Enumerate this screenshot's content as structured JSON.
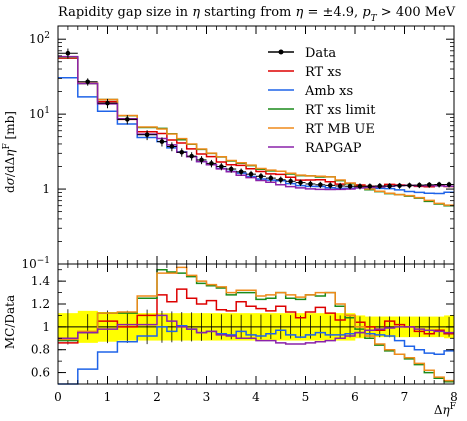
{
  "chart_data": {
    "type": "line",
    "title": "Rapidity gap size in η starting from η = ±4.9, p_T > 400 MeV",
    "xlabel": "Δη^F",
    "ylabel": "dσ/dΔη^F [mb]",
    "ratio_ylabel": "MC/Data",
    "xlim": [
      0,
      8
    ],
    "ylim": [
      0.1,
      150
    ],
    "yscale": "log",
    "ratio_ylim": [
      0.5,
      1.55
    ],
    "grid": false,
    "legend_position": "top-right",
    "x_tick_labels": [
      "0",
      "1",
      "2",
      "3",
      "4",
      "5",
      "6",
      "7",
      "8"
    ],
    "y_tick_labels": [
      "10^-1",
      "1",
      "10^1",
      "10^2"
    ],
    "ratio_tick_labels": [
      "0.6",
      "0.8",
      "1",
      "1.2",
      "1.4"
    ],
    "bin_edges": [
      0.0,
      0.4,
      0.8,
      1.2,
      1.6,
      2.0,
      2.2,
      2.4,
      2.6,
      2.8,
      3.0,
      3.2,
      3.4,
      3.6,
      3.8,
      4.0,
      4.2,
      4.4,
      4.6,
      4.8,
      5.0,
      5.2,
      5.4,
      5.6,
      5.8,
      6.0,
      6.2,
      6.4,
      6.6,
      6.8,
      7.0,
      7.2,
      7.4,
      7.6,
      7.8,
      8.0
    ],
    "data": {
      "name": "Data",
      "color": "#000000",
      "values": [
        65,
        27,
        14,
        8.5,
        5.3,
        4.3,
        3.7,
        3.1,
        2.75,
        2.45,
        2.2,
        2.0,
        1.85,
        1.7,
        1.58,
        1.48,
        1.4,
        1.33,
        1.27,
        1.22,
        1.17,
        1.14,
        1.12,
        1.1,
        1.09,
        1.09,
        1.09,
        1.1,
        1.1,
        1.11,
        1.12,
        1.13,
        1.14,
        1.15,
        1.15
      ],
      "errors": [
        10,
        3,
        2,
        1.2,
        0.8,
        0.6,
        0.5,
        0.4,
        0.35,
        0.3,
        0.25,
        0.22,
        0.2,
        0.18,
        0.17,
        0.16,
        0.15,
        0.14,
        0.13,
        0.12,
        0.12,
        0.11,
        0.11,
        0.11,
        0.1,
        0.1,
        0.1,
        0.1,
        0.1,
        0.1,
        0.1,
        0.1,
        0.1,
        0.1,
        0.1
      ],
      "band": [
        0.12,
        0.14,
        0.13,
        0.12,
        0.12,
        0.12,
        0.12,
        0.12,
        0.12,
        0.12,
        0.12,
        0.12,
        0.12,
        0.12,
        0.12,
        0.12,
        0.12,
        0.12,
        0.12,
        0.12,
        0.12,
        0.12,
        0.12,
        0.12,
        0.12,
        0.1,
        0.09,
        0.09,
        0.09,
        0.09,
        0.09,
        0.09,
        0.09,
        0.09,
        0.1
      ]
    },
    "series": [
      {
        "name": "RT xs",
        "color": "#dd0000",
        "ratio": [
          0.86,
          0.95,
          1.05,
          1.0,
          1.1,
          1.28,
          1.22,
          1.33,
          1.25,
          1.2,
          1.23,
          1.15,
          1.14,
          1.22,
          1.18,
          1.16,
          1.14,
          1.18,
          1.13,
          1.08,
          1.13,
          1.17,
          1.12,
          1.06,
          1.1,
          1.04,
          1.0,
          0.97,
          1.05,
          1.02,
          1.0,
          0.96,
          0.94,
          0.97,
          0.94
        ]
      },
      {
        "name": "Amb xs",
        "color": "#1f63e8",
        "ratio": [
          0.47,
          0.63,
          0.78,
          0.87,
          0.92,
          1.0,
          0.96,
          1.01,
          0.98,
          0.95,
          0.96,
          0.94,
          0.93,
          0.96,
          0.93,
          0.92,
          0.94,
          0.97,
          0.93,
          0.91,
          0.93,
          0.95,
          0.93,
          0.93,
          0.94,
          0.95,
          0.94,
          0.93,
          0.92,
          0.88,
          0.83,
          0.8,
          0.77,
          0.76,
          0.79
        ]
      },
      {
        "name": "RT xs limit",
        "color": "#1a8a1a",
        "ratio": [
          0.88,
          0.95,
          1.12,
          1.12,
          1.25,
          1.5,
          1.48,
          1.47,
          1.44,
          1.38,
          1.36,
          1.34,
          1.28,
          1.3,
          1.3,
          1.24,
          1.25,
          1.3,
          1.25,
          1.24,
          1.28,
          1.27,
          1.3,
          1.18,
          1.08,
          0.98,
          0.9,
          0.84,
          0.79,
          0.76,
          0.72,
          0.67,
          0.6,
          0.55,
          0.52
        ]
      },
      {
        "name": "RT MB UE",
        "color": "#ef8a1a",
        "ratio": [
          0.89,
          0.96,
          1.12,
          1.13,
          1.27,
          1.47,
          1.47,
          1.52,
          1.45,
          1.4,
          1.37,
          1.35,
          1.3,
          1.32,
          1.32,
          1.27,
          1.28,
          1.3,
          1.28,
          1.26,
          1.28,
          1.3,
          1.3,
          1.2,
          1.1,
          1.0,
          0.92,
          0.85,
          0.8,
          0.76,
          0.73,
          0.68,
          0.62,
          0.56,
          0.53
        ]
      },
      {
        "name": "RAPGAP",
        "color": "#8a22aa",
        "ratio": [
          0.9,
          0.95,
          0.98,
          1.02,
          1.02,
          1.1,
          1.05,
          1.0,
          0.98,
          0.95,
          0.96,
          0.93,
          0.92,
          0.9,
          0.9,
          0.88,
          0.88,
          0.86,
          0.85,
          0.85,
          0.86,
          0.87,
          0.88,
          0.9,
          0.92,
          0.95,
          0.97,
          0.98,
          0.99,
          1.0,
          1.0,
          0.98,
          0.97,
          0.96,
          0.95
        ]
      }
    ]
  }
}
